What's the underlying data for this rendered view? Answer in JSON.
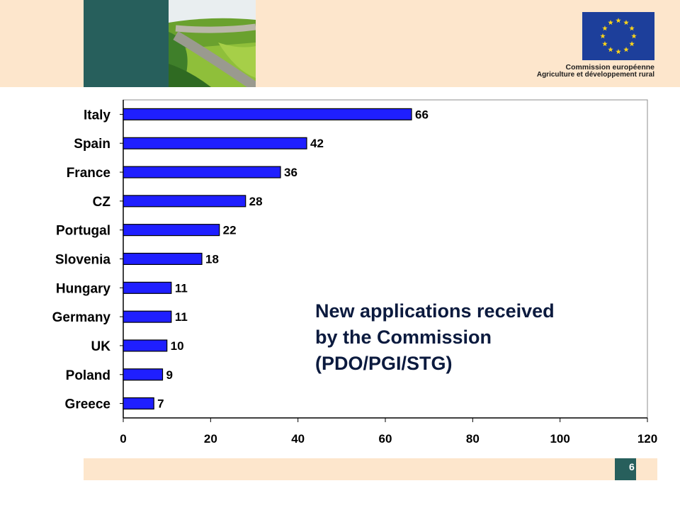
{
  "header": {
    "org_line1": "Commission européenne",
    "org_line2": "Agriculture et développement rural"
  },
  "chart_data": {
    "type": "bar",
    "orientation": "horizontal",
    "categories": [
      "Italy",
      "Spain",
      "France",
      "CZ",
      "Portugal",
      "Slovenia",
      "Hungary",
      "Germany",
      "UK",
      "Poland",
      "Greece"
    ],
    "values": [
      66,
      42,
      36,
      28,
      22,
      18,
      11,
      11,
      10,
      9,
      7
    ],
    "xlim": [
      0,
      120
    ],
    "xticks": [
      0,
      20,
      40,
      60,
      80,
      100,
      120
    ],
    "bar_color": "#1f1fff",
    "grid": false,
    "data_labels": true
  },
  "annotation": {
    "lines": [
      "New applications received",
      "by the Commission",
      "(PDO/PGI/STG)"
    ]
  },
  "footer": {
    "page_number": "6"
  },
  "colors": {
    "banner": "#fde6cc",
    "accent_teal": "#275f5c",
    "eu_blue": "#1d3f9b",
    "eu_star": "#ffd617"
  }
}
